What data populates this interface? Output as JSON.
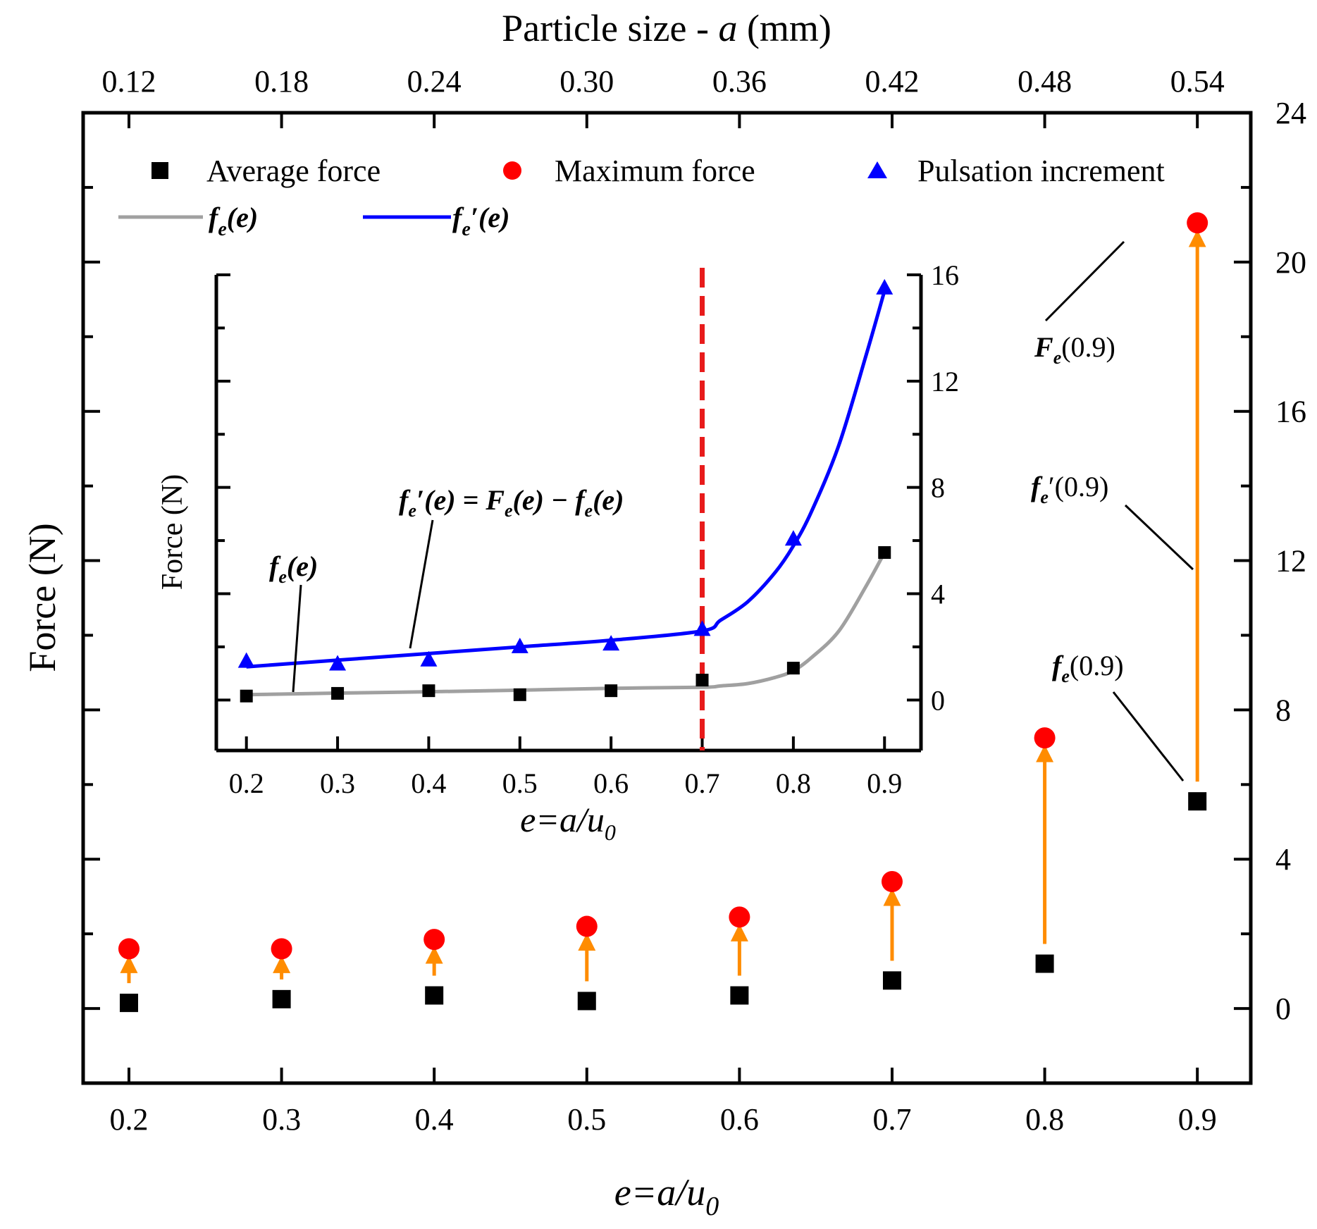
{
  "chart_data": [
    {
      "id": "main",
      "type": "scatter",
      "x_bottom": {
        "label": "e=a/u0",
        "label_parts": {
          "main": "e=a/u",
          "sub": "0"
        },
        "range": [
          0.17,
          0.935
        ],
        "ticks": [
          0.2,
          0.3,
          0.4,
          0.5,
          0.6,
          0.7,
          0.8,
          0.9
        ],
        "tick_labels": [
          "0.2",
          "0.3",
          "0.4",
          "0.5",
          "0.6",
          "0.7",
          "0.8",
          "0.9"
        ]
      },
      "x_top": {
        "label": "Particle size - a (mm)",
        "label_parts": {
          "pre": "Particle size - ",
          "var": "a",
          "post": " (mm)"
        },
        "ticks": [
          0.12,
          0.18,
          0.24,
          0.3,
          0.36,
          0.42,
          0.48,
          0.54
        ],
        "tick_labels": [
          "0.12",
          "0.18",
          "0.24",
          "0.30",
          "0.36",
          "0.42",
          "0.48",
          "0.54"
        ]
      },
      "y_left": {
        "label": "Force (N)"
      },
      "y_right": {
        "range": [
          -2,
          24
        ],
        "ticks": [
          0,
          4,
          8,
          12,
          16,
          20,
          24
        ],
        "tick_labels": [
          "0",
          "4",
          "8",
          "12",
          "16",
          "20",
          "24"
        ]
      },
      "series": [
        {
          "name": "Average force",
          "marker": "square",
          "color": "#000000",
          "x": [
            0.2,
            0.3,
            0.4,
            0.5,
            0.6,
            0.7,
            0.8,
            0.9
          ],
          "y": [
            0.15,
            0.25,
            0.35,
            0.2,
            0.35,
            0.75,
            1.2,
            5.55
          ]
        },
        {
          "name": "Maximum force",
          "marker": "circle",
          "color": "#ff0000",
          "x": [
            0.2,
            0.3,
            0.4,
            0.5,
            0.6,
            0.7,
            0.8,
            0.9
          ],
          "y": [
            1.6,
            1.6,
            1.85,
            2.2,
            2.45,
            3.4,
            7.25,
            21.05
          ]
        },
        {
          "name": "Pulsation increment",
          "marker": "triangle",
          "color": "#0000ff"
        }
      ],
      "legend_lines": [
        {
          "name": "fe(e)",
          "parts": {
            "f": "f",
            "sub": "e",
            "rest": "(e)"
          },
          "color": "#a0a0a0"
        },
        {
          "name": "fe'(e)",
          "parts": {
            "f": "f",
            "sub": "e",
            "rest": "′(e)"
          },
          "color": "#0000ff"
        }
      ],
      "increment_arrow_color": "#ff8c00",
      "annotations": [
        {
          "id": "Fe09",
          "parts": {
            "f": "F",
            "sub": "e",
            "rest": "(0.9)"
          }
        },
        {
          "id": "fep09",
          "parts": {
            "f": "f",
            "sub": "e",
            "rest": "′(0.9)"
          }
        },
        {
          "id": "fe09",
          "parts": {
            "f": "f",
            "sub": "e",
            "rest": "(0.9)"
          }
        }
      ]
    },
    {
      "id": "inset",
      "type": "line+scatter",
      "x": {
        "label_parts": {
          "main": "e=a/u",
          "sub": "0"
        },
        "range": [
          0.167,
          0.94
        ],
        "ticks": [
          0.2,
          0.3,
          0.4,
          0.5,
          0.6,
          0.7,
          0.8,
          0.9
        ],
        "tick_labels": [
          "0.2",
          "0.3",
          "0.4",
          "0.5",
          "0.6",
          "0.7",
          "0.8",
          "0.9"
        ]
      },
      "y": {
        "label": "Force (N)",
        "range": [
          -1.9,
          16
        ],
        "ticks": [
          0,
          4,
          8,
          12,
          16
        ],
        "tick_labels": [
          "0",
          "4",
          "8",
          "12",
          "16"
        ]
      },
      "series": [
        {
          "name": "Average force",
          "marker": "square",
          "color": "#000000",
          "x": [
            0.2,
            0.3,
            0.4,
            0.5,
            0.6,
            0.7,
            0.8,
            0.9
          ],
          "y": [
            0.15,
            0.25,
            0.35,
            0.2,
            0.35,
            0.75,
            1.2,
            5.55
          ]
        },
        {
          "name": "Pulsation increment",
          "marker": "triangle",
          "color": "#0000ff",
          "x": [
            0.2,
            0.3,
            0.4,
            0.5,
            0.6,
            0.7,
            0.8,
            0.9
          ],
          "y": [
            1.45,
            1.35,
            1.5,
            2.0,
            2.1,
            2.65,
            6.05,
            15.5
          ]
        },
        {
          "name": "fe(e)",
          "curve": true,
          "color": "#a0a0a0",
          "x": [
            0.2,
            0.3,
            0.4,
            0.5,
            0.6,
            0.7,
            0.72,
            0.75,
            0.78,
            0.8,
            0.82,
            0.85,
            0.88,
            0.9
          ],
          "y": [
            0.2,
            0.26,
            0.31,
            0.37,
            0.44,
            0.48,
            0.53,
            0.62,
            0.85,
            1.1,
            1.6,
            2.6,
            4.3,
            5.55
          ]
        },
        {
          "name": "fe'(e)",
          "curve": true,
          "color": "#0000ff",
          "x": [
            0.2,
            0.3,
            0.4,
            0.5,
            0.6,
            0.7,
            0.72,
            0.75,
            0.78,
            0.8,
            0.82,
            0.85,
            0.88,
            0.9
          ],
          "y": [
            1.25,
            1.5,
            1.75,
            2.0,
            2.25,
            2.6,
            3.0,
            3.7,
            4.8,
            5.8,
            7.1,
            9.6,
            13.0,
            15.4
          ]
        }
      ],
      "threshold": {
        "x": 0.7,
        "color": "#e81b1b"
      },
      "annotations": [
        {
          "id": "eq",
          "parts": {
            "f1": "f",
            "s1": "e",
            "r1": "′(e) = ",
            "f2": "F",
            "s2": "e",
            "r2": "(e) − ",
            "f3": "f",
            "s3": "e",
            "r3": "(e)"
          }
        },
        {
          "id": "fe",
          "parts": {
            "f": "f",
            "sub": "e",
            "rest": "(e)"
          }
        }
      ]
    }
  ]
}
